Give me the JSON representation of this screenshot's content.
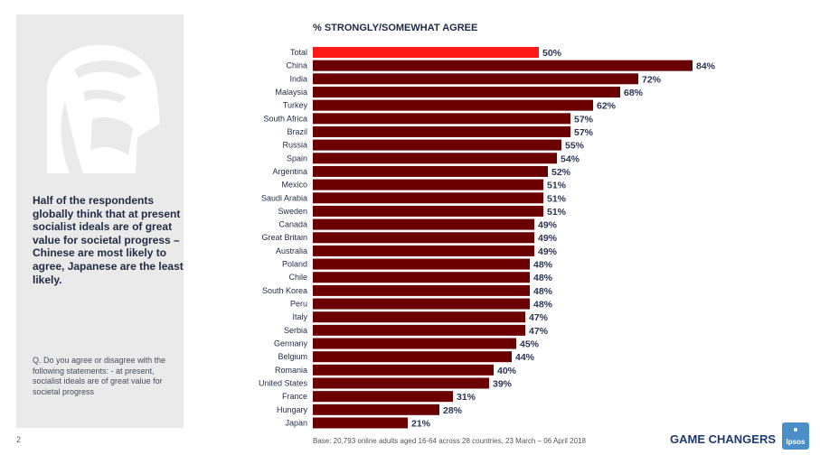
{
  "summary_text": "Half of the respondents globally think that at present socialist ideals are of great value for societal progress –  Chinese are most likely to agree, Japanese are the least likely.",
  "question_text": "Q. Do you agree or disagree with the following statements: - at present, socialist ideals are of great value for societal progress",
  "page_number": "2",
  "base_note": "Base: 20,793 online adults aged 16-64 across 28 countries,  23 March – 06 April 2018",
  "footer_tag": "GAME CHANGERS",
  "logo_text": "Ipsos",
  "colors": {
    "highlight": "#ff1a1a",
    "bar": "#6b0000",
    "text": "#1f2a44"
  },
  "chart_data": {
    "type": "bar",
    "orientation": "horizontal",
    "title": "% STRONGLY/SOMEWHAT AGREE",
    "categories": [
      "Total",
      "China",
      "India",
      "Malaysia",
      "Turkey",
      "South Africa",
      "Brazil",
      "Russia",
      "Spain",
      "Argentina",
      "Mexico",
      "Saudi Arabia",
      "Sweden",
      "Canada",
      "Great Britain",
      "Australia",
      "Poland",
      "Chile",
      "South Korea",
      "Peru",
      "Italy",
      "Serbia",
      "Germany",
      "Belgium",
      "Romania",
      "United States",
      "France",
      "Hungary",
      "Japan"
    ],
    "values": [
      50,
      84,
      72,
      68,
      62,
      57,
      57,
      55,
      54,
      52,
      51,
      51,
      51,
      49,
      49,
      49,
      48,
      48,
      48,
      48,
      47,
      47,
      45,
      44,
      40,
      39,
      31,
      28,
      21
    ],
    "value_suffix": "%",
    "highlight_index": 0,
    "xlim": [
      0,
      100
    ],
    "grid": false,
    "legend": "none"
  }
}
